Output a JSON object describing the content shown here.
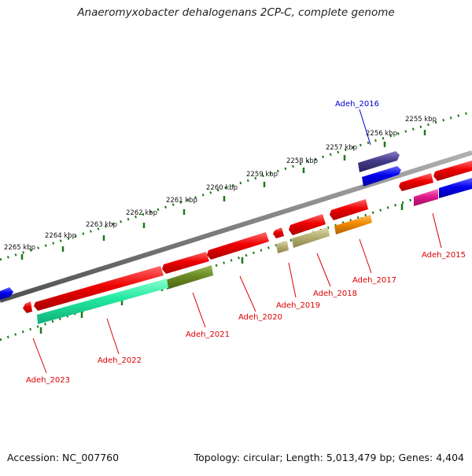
{
  "title": "Anaeromyxobacter dehalogenans 2CP-C, complete genome",
  "footer": {
    "accession": "Accession: NC_007760",
    "summary": "Topology: circular; Length: 5,013,479 bp; Genes: 4,404"
  },
  "scale_labels": [
    "2255 kbp",
    "2256 kbp",
    "2257 kbp",
    "2258 kbp",
    "2259 kbp",
    "2260 kbp",
    "2261 kbp",
    "2262 kbp",
    "2263 kbp",
    "2264 kbp",
    "2265 kbp"
  ],
  "genes": [
    {
      "name": "Adeh_2016",
      "color": "#0000cc"
    },
    {
      "name": "Adeh_2015",
      "color": "#dd0000"
    },
    {
      "name": "Adeh_2017",
      "color": "#dd0000"
    },
    {
      "name": "Adeh_2018",
      "color": "#dd0000"
    },
    {
      "name": "Adeh_2019",
      "color": "#dd0000"
    },
    {
      "name": "Adeh_2020",
      "color": "#dd0000"
    },
    {
      "name": "Adeh_2021",
      "color": "#dd0000"
    },
    {
      "name": "Adeh_2022",
      "color": "#dd0000"
    },
    {
      "name": "Adeh_2023",
      "color": "#dd0000"
    }
  ],
  "colors": {
    "backbone": "#808080",
    "scale_dots": "#1a7a1a",
    "forward_red": "#ee0000",
    "blue": "#0000ee",
    "navy_purple": "#443a88",
    "magenta": "#e0188c",
    "orange": "#f08a00",
    "khaki": "#b8b070",
    "olive": "#6b8a22",
    "aqua_green": "#20e8a0"
  }
}
